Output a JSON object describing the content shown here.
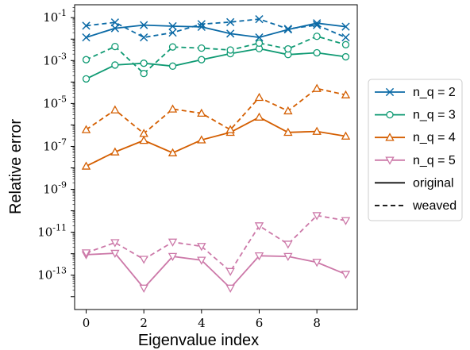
{
  "chart_data": {
    "type": "line",
    "xlabel": "Eigenvalue index",
    "ylabel": "Relative error",
    "x": [
      0,
      1,
      2,
      3,
      4,
      5,
      6,
      7,
      8,
      9
    ],
    "xlim": [
      -0.4,
      9.4
    ],
    "ylim_exponent": [
      -14.6,
      -0.4
    ],
    "y_scale": "log",
    "x_ticks": [
      0,
      2,
      4,
      6,
      8
    ],
    "y_ticks_exponent": [
      -1,
      -3,
      -5,
      -7,
      -9,
      -11,
      -13
    ],
    "grid": false,
    "legend_position": "right, outside",
    "series": [
      {
        "name": "n_q = 2",
        "style": "original",
        "marker": "x",
        "color": "#0b6aa6",
        "values": [
          0.012,
          0.032,
          0.045,
          0.04,
          0.037,
          0.018,
          0.012,
          0.028,
          0.055,
          0.038
        ]
      },
      {
        "name": "n_q = 2",
        "style": "weaved",
        "marker": "x",
        "color": "#0b6aa6",
        "values": [
          0.042,
          0.06,
          0.012,
          0.02,
          0.05,
          0.062,
          0.085,
          0.03,
          0.045,
          0.012
        ]
      },
      {
        "name": "n_q = 3",
        "style": "original",
        "marker": "o",
        "color": "#0f9a73",
        "values": [
          0.00014,
          0.00062,
          0.00075,
          0.00055,
          0.0011,
          0.0021,
          0.0036,
          0.0019,
          0.0023,
          0.0015
        ]
      },
      {
        "name": "n_q = 3",
        "style": "weaved",
        "marker": "o",
        "color": "#0f9a73",
        "values": [
          0.0011,
          0.0045,
          0.00025,
          0.0043,
          0.0038,
          0.0031,
          0.0065,
          0.0035,
          0.0135,
          0.0055
        ]
      },
      {
        "name": "n_q = 4",
        "style": "original",
        "marker": "^",
        "color": "#d45e00",
        "values": [
          1.2e-08,
          5.5e-08,
          1.9e-07,
          5e-08,
          2e-07,
          4.5e-07,
          2.3e-06,
          4.5e-07,
          5e-07,
          3e-07
        ]
      },
      {
        "name": "n_q = 4",
        "style": "weaved",
        "marker": "^",
        "color": "#d45e00",
        "values": [
          6e-07,
          5e-06,
          4e-07,
          5.5e-06,
          3.5e-06,
          6e-07,
          1.9e-05,
          4.5e-06,
          5e-05,
          2.5e-05
        ]
      },
      {
        "name": "n_q = 5",
        "style": "original",
        "marker": "v",
        "color": "#cc78a8",
        "values": [
          9e-13,
          1.05e-12,
          2.5e-14,
          7.5e-13,
          5e-13,
          2.5e-14,
          8e-13,
          7.5e-13,
          4e-13,
          1.1e-13
        ]
      },
      {
        "name": "n_q = 5",
        "style": "weaved",
        "marker": "v",
        "color": "#cc78a8",
        "values": [
          1.1e-12,
          3.3e-12,
          5.5e-13,
          3.5e-12,
          2.2e-12,
          1.5e-13,
          2e-11,
          2.8e-12,
          6e-11,
          3.5e-11
        ]
      }
    ],
    "legend": [
      {
        "label": "n_q = 2",
        "type": "series",
        "marker": "x",
        "color": "#0b6aa6"
      },
      {
        "label": "n_q = 3",
        "type": "series",
        "marker": "o",
        "color": "#0f9a73"
      },
      {
        "label": "n_q = 4",
        "type": "series",
        "marker": "^",
        "color": "#d45e00"
      },
      {
        "label": "n_q = 5",
        "type": "series",
        "marker": "v",
        "color": "#cc78a8"
      },
      {
        "label": "original",
        "type": "style",
        "dash": "solid"
      },
      {
        "label": "weaved",
        "type": "style",
        "dash": "dashed"
      }
    ]
  }
}
